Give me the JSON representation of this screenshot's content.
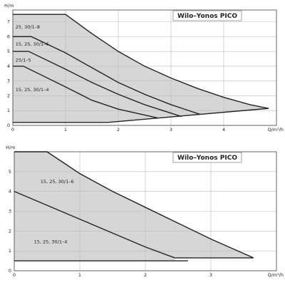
{
  "chart_data": [
    {
      "type": "line",
      "title": "Wilo–Yonos PICO",
      "xlabel": "Q/m³/h",
      "ylabel": "H/m",
      "xlim": [
        0,
        5
      ],
      "ylim": [
        0,
        7.8
      ],
      "xticks": [
        0,
        1,
        2,
        3,
        4
      ],
      "yticks": [
        0,
        1,
        2,
        3,
        4,
        5,
        6,
        7
      ],
      "grid": true,
      "series": [
        {
          "name": "25, 30/1–8",
          "color": "#222222",
          "fill": "#d6d6d6",
          "x": [
            0,
            1,
            1.5,
            2,
            2.5,
            3,
            3.5,
            4,
            4.5,
            4.85
          ],
          "values": [
            7.5,
            7.5,
            6.2,
            5.0,
            4.0,
            3.2,
            2.5,
            1.9,
            1.4,
            1.15
          ]
        },
        {
          "name": "15, 25, 30/1–6",
          "color": "#222222",
          "x": [
            0,
            0.35,
            1,
            1.5,
            2,
            2.5,
            3,
            3.55
          ],
          "values": [
            6,
            6,
            4.9,
            3.9,
            2.9,
            2.1,
            1.4,
            0.75
          ]
        },
        {
          "name": "25/1–5",
          "color": "#222222",
          "x": [
            0,
            0.3,
            1,
            1.5,
            2,
            2.5,
            3.2
          ],
          "values": [
            5,
            5,
            3.8,
            2.9,
            2.1,
            1.4,
            0.6
          ]
        },
        {
          "name": "15, 25, 30/1–4",
          "color": "#222222",
          "x": [
            0,
            0.2,
            1,
            1.5,
            2,
            2.75
          ],
          "values": [
            4,
            4,
            2.6,
            1.7,
            1.1,
            0.5
          ]
        },
        {
          "color": "#222222",
          "fill": "#ffffff",
          "x": [
            0,
            1.8,
            4.85
          ],
          "values": [
            0.2,
            0.2,
            1.15
          ]
        }
      ]
    },
    {
      "type": "line",
      "title": "Wilo–Yonos PICO",
      "xlabel": "Q/m³/h",
      "ylabel": "H/m",
      "xlim": [
        0,
        4
      ],
      "ylim": [
        0,
        6
      ],
      "xticks": [
        0,
        1,
        2,
        3
      ],
      "yticks": [
        0,
        1,
        2,
        3,
        4,
        5
      ],
      "grid": true,
      "series": [
        {
          "name": "15, 25, 30/1–6",
          "color": "#222222",
          "fill": "#d6d6d6",
          "x": [
            0,
            0.5,
            1,
            1.5,
            2,
            2.5,
            3,
            3.65,
            2.45
          ],
          "values": [
            6,
            6,
            4.9,
            4.0,
            3.2,
            2.4,
            1.6,
            0.65,
            0.65
          ]
        },
        {
          "name": "15, 25, 30/1–4",
          "color": "#222222",
          "x": [
            0,
            0.5,
            1,
            1.5,
            2,
            2.45
          ],
          "values": [
            4,
            3.3,
            2.6,
            1.9,
            1.2,
            0.65
          ]
        },
        {
          "color": "#222222",
          "fill": "#ffffff",
          "x": [
            0,
            2.65
          ],
          "values": [
            0.5,
            0.5
          ]
        }
      ]
    }
  ]
}
